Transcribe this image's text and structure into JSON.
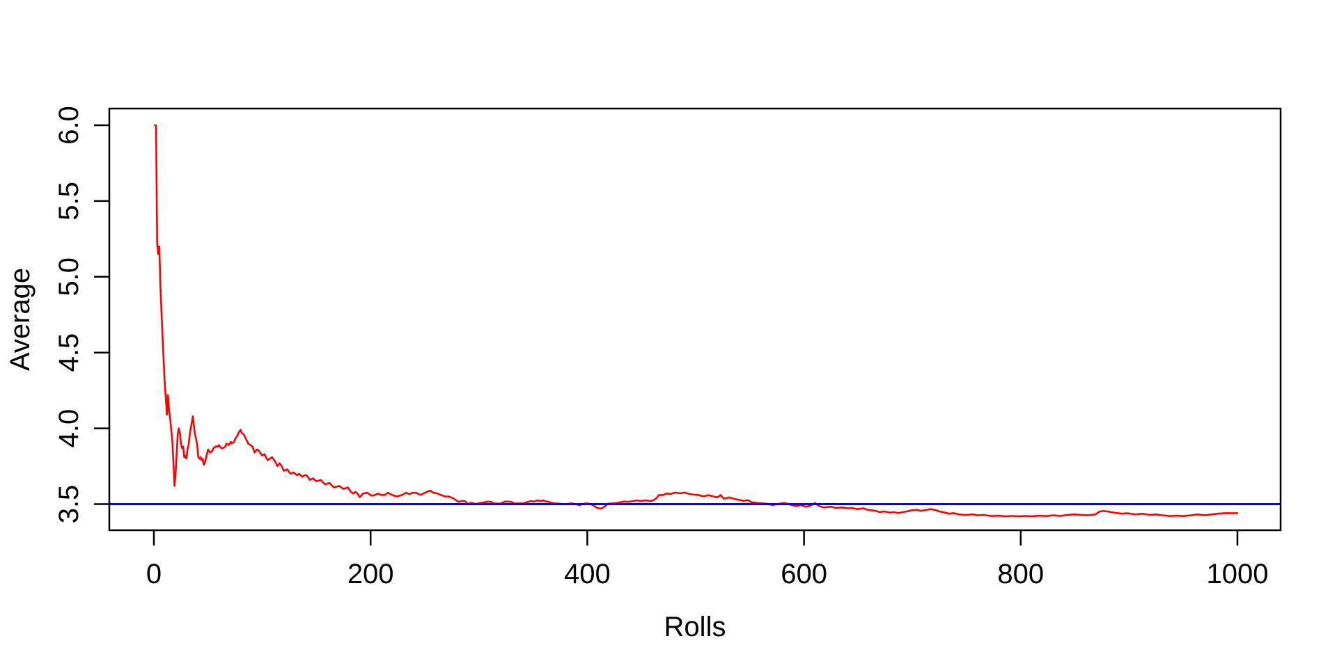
{
  "figure": {
    "background_color": "#ffffff",
    "axis_color": "#000000",
    "accent_red": "#ff0000",
    "accent_blue": "#0000ff"
  },
  "chart_data": {
    "type": "line",
    "title": "",
    "xlabel": "Rolls",
    "ylabel": "Average",
    "grid": false,
    "legend": "none",
    "xlim": [
      -39,
      1040
    ],
    "ylim": [
      3.33,
      6.1
    ],
    "x_ticks": [
      0,
      200,
      400,
      600,
      800,
      1000
    ],
    "x_tick_labels": [
      "0",
      "200",
      "400",
      "600",
      "800",
      "1000"
    ],
    "y_ticks": [
      3.5,
      4.0,
      4.5,
      5.0,
      5.5,
      6.0
    ],
    "y_tick_labels": [
      "3.5",
      "4.0",
      "4.5",
      "5.0",
      "5.5",
      "6.0"
    ],
    "series": [
      {
        "name": "running_average",
        "type": "line",
        "color": "#ff0000",
        "points": [
          [
            1,
            6.0
          ],
          [
            2,
            6.0
          ],
          [
            3,
            5.22
          ],
          [
            4,
            5.15
          ],
          [
            5,
            5.2
          ],
          [
            6,
            4.95
          ],
          [
            7,
            4.77
          ],
          [
            8,
            4.61
          ],
          [
            9,
            4.45
          ],
          [
            10,
            4.3
          ],
          [
            11,
            4.2
          ],
          [
            12,
            4.09
          ],
          [
            13,
            4.22
          ],
          [
            14,
            4.12
          ],
          [
            15,
            4.07
          ],
          [
            16,
            3.99
          ],
          [
            17,
            3.92
          ],
          [
            18,
            3.78
          ],
          [
            19,
            3.62
          ],
          [
            20,
            3.7
          ],
          [
            21,
            3.83
          ],
          [
            22,
            3.96
          ],
          [
            23,
            4.0
          ],
          [
            24,
            3.97
          ],
          [
            25,
            3.9
          ],
          [
            26,
            3.87
          ],
          [
            27,
            3.88
          ],
          [
            28,
            3.81
          ],
          [
            29,
            3.82
          ],
          [
            30,
            3.8
          ],
          [
            31,
            3.86
          ],
          [
            32,
            3.89
          ],
          [
            33,
            3.95
          ],
          [
            34,
            4.0
          ],
          [
            35,
            4.04
          ],
          [
            36,
            4.08
          ],
          [
            37,
            4.01
          ],
          [
            38,
            3.96
          ],
          [
            39,
            3.93
          ],
          [
            40,
            3.89
          ],
          [
            41,
            3.81
          ],
          [
            42,
            3.8
          ],
          [
            43,
            3.81
          ],
          [
            44,
            3.79
          ],
          [
            45,
            3.8
          ],
          [
            46,
            3.76
          ],
          [
            47,
            3.77
          ],
          [
            48,
            3.8
          ],
          [
            49,
            3.83
          ],
          [
            50,
            3.86
          ],
          [
            52,
            3.84
          ],
          [
            54,
            3.85
          ],
          [
            55,
            3.87
          ],
          [
            57,
            3.88
          ],
          [
            59,
            3.88
          ],
          [
            60,
            3.89
          ],
          [
            62,
            3.87
          ],
          [
            64,
            3.87
          ],
          [
            66,
            3.88
          ],
          [
            67,
            3.9
          ],
          [
            69,
            3.89
          ],
          [
            71,
            3.91
          ],
          [
            72,
            3.9
          ],
          [
            74,
            3.91
          ],
          [
            75,
            3.93
          ],
          [
            77,
            3.95
          ],
          [
            78,
            3.97
          ],
          [
            80,
            3.99
          ],
          [
            81,
            3.97
          ],
          [
            83,
            3.96
          ],
          [
            85,
            3.93
          ],
          [
            87,
            3.9
          ],
          [
            89,
            3.89
          ],
          [
            91,
            3.88
          ],
          [
            93,
            3.84
          ],
          [
            95,
            3.86
          ],
          [
            96,
            3.86
          ],
          [
            98,
            3.84
          ],
          [
            100,
            3.82
          ],
          [
            102,
            3.83
          ],
          [
            105,
            3.79
          ],
          [
            107,
            3.8
          ],
          [
            109,
            3.81
          ],
          [
            112,
            3.78
          ],
          [
            114,
            3.75
          ],
          [
            116,
            3.77
          ],
          [
            118,
            3.75
          ],
          [
            120,
            3.72
          ],
          [
            123,
            3.73
          ],
          [
            126,
            3.7
          ],
          [
            129,
            3.71
          ],
          [
            132,
            3.69
          ],
          [
            134,
            3.7
          ],
          [
            137,
            3.68
          ],
          [
            139,
            3.69
          ],
          [
            141,
            3.69
          ],
          [
            144,
            3.66
          ],
          [
            147,
            3.67
          ],
          [
            150,
            3.65
          ],
          [
            154,
            3.66
          ],
          [
            158,
            3.63
          ],
          [
            162,
            3.64
          ],
          [
            166,
            3.61
          ],
          [
            171,
            3.62
          ],
          [
            175,
            3.6
          ],
          [
            179,
            3.61
          ],
          [
            182,
            3.58
          ],
          [
            184,
            3.57
          ],
          [
            186,
            3.58
          ],
          [
            188,
            3.57
          ],
          [
            190,
            3.545
          ],
          [
            193,
            3.57
          ],
          [
            197,
            3.575
          ],
          [
            201,
            3.555
          ],
          [
            204,
            3.56
          ],
          [
            207,
            3.57
          ],
          [
            210,
            3.56
          ],
          [
            213,
            3.56
          ],
          [
            216,
            3.575
          ],
          [
            220,
            3.56
          ],
          [
            224,
            3.55
          ],
          [
            229,
            3.56
          ],
          [
            233,
            3.575
          ],
          [
            236,
            3.565
          ],
          [
            239,
            3.575
          ],
          [
            242,
            3.575
          ],
          [
            246,
            3.56
          ],
          [
            250,
            3.575
          ],
          [
            255,
            3.59
          ],
          [
            258,
            3.575
          ],
          [
            262,
            3.57
          ],
          [
            265,
            3.56
          ],
          [
            269,
            3.55
          ],
          [
            272,
            3.55
          ],
          [
            276,
            3.54
          ],
          [
            281,
            3.515
          ],
          [
            284,
            3.52
          ],
          [
            287,
            3.52
          ],
          [
            290,
            3.5
          ],
          [
            293,
            3.51
          ],
          [
            297,
            3.5
          ],
          [
            301,
            3.508
          ],
          [
            304,
            3.51
          ],
          [
            308,
            3.517
          ],
          [
            311,
            3.515
          ],
          [
            314,
            3.505
          ],
          [
            317,
            3.503
          ],
          [
            319,
            3.503
          ],
          [
            322,
            3.51
          ],
          [
            324,
            3.517
          ],
          [
            327,
            3.517
          ],
          [
            330,
            3.515
          ],
          [
            333,
            3.503
          ],
          [
            335,
            3.505
          ],
          [
            338,
            3.505
          ],
          [
            341,
            3.505
          ],
          [
            345,
            3.515
          ],
          [
            348,
            3.52
          ],
          [
            351,
            3.517
          ],
          [
            354,
            3.525
          ],
          [
            357,
            3.52
          ],
          [
            359,
            3.525
          ],
          [
            362,
            3.517
          ],
          [
            364,
            3.517
          ],
          [
            366,
            3.51
          ],
          [
            370,
            3.505
          ],
          [
            374,
            3.503
          ],
          [
            377,
            3.5
          ],
          [
            380,
            3.5
          ],
          [
            385,
            3.505
          ],
          [
            389,
            3.5
          ],
          [
            393,
            3.493
          ],
          [
            397,
            3.503
          ],
          [
            400,
            3.505
          ],
          [
            403,
            3.5
          ],
          [
            406,
            3.49
          ],
          [
            409,
            3.475
          ],
          [
            413,
            3.47
          ],
          [
            416,
            3.484
          ],
          [
            419,
            3.503
          ],
          [
            424,
            3.505
          ],
          [
            429,
            3.51
          ],
          [
            434,
            3.517
          ],
          [
            438,
            3.515
          ],
          [
            442,
            3.52
          ],
          [
            446,
            3.525
          ],
          [
            449,
            3.52
          ],
          [
            454,
            3.525
          ],
          [
            458,
            3.52
          ],
          [
            461,
            3.525
          ],
          [
            464,
            3.54
          ],
          [
            466,
            3.56
          ],
          [
            470,
            3.56
          ],
          [
            473,
            3.57
          ],
          [
            477,
            3.567
          ],
          [
            481,
            3.576
          ],
          [
            486,
            3.571
          ],
          [
            490,
            3.576
          ],
          [
            494,
            3.567
          ],
          [
            499,
            3.562
          ],
          [
            503,
            3.559
          ],
          [
            507,
            3.551
          ],
          [
            512,
            3.559
          ],
          [
            516,
            3.551
          ],
          [
            520,
            3.544
          ],
          [
            523,
            3.56
          ],
          [
            526,
            3.536
          ],
          [
            531,
            3.544
          ],
          [
            535,
            3.536
          ],
          [
            539,
            3.53
          ],
          [
            544,
            3.521
          ],
          [
            548,
            3.526
          ],
          [
            552,
            3.512
          ],
          [
            559,
            3.507
          ],
          [
            565,
            3.503
          ],
          [
            571,
            3.494
          ],
          [
            578,
            3.503
          ],
          [
            582,
            3.508
          ],
          [
            586,
            3.5
          ],
          [
            589,
            3.493
          ],
          [
            593,
            3.487
          ],
          [
            597,
            3.493
          ],
          [
            602,
            3.483
          ],
          [
            606,
            3.49
          ],
          [
            610,
            3.508
          ],
          [
            614,
            3.487
          ],
          [
            618,
            3.478
          ],
          [
            625,
            3.483
          ],
          [
            629,
            3.475
          ],
          [
            636,
            3.478
          ],
          [
            640,
            3.472
          ],
          [
            644,
            3.475
          ],
          [
            649,
            3.467
          ],
          [
            655,
            3.472
          ],
          [
            659,
            3.462
          ],
          [
            666,
            3.456
          ],
          [
            670,
            3.447
          ],
          [
            674,
            3.452
          ],
          [
            679,
            3.444
          ],
          [
            683,
            3.447
          ],
          [
            687,
            3.441
          ],
          [
            691,
            3.447
          ],
          [
            695,
            3.452
          ],
          [
            700,
            3.46
          ],
          [
            704,
            3.462
          ],
          [
            708,
            3.456
          ],
          [
            713,
            3.462
          ],
          [
            717,
            3.467
          ],
          [
            721,
            3.462
          ],
          [
            725,
            3.452
          ],
          [
            730,
            3.444
          ],
          [
            734,
            3.437
          ],
          [
            738,
            3.441
          ],
          [
            743,
            3.432
          ],
          [
            749,
            3.429
          ],
          [
            756,
            3.432
          ],
          [
            760,
            3.426
          ],
          [
            766,
            3.429
          ],
          [
            773,
            3.421
          ],
          [
            779,
            3.424
          ],
          [
            786,
            3.419
          ],
          [
            792,
            3.422
          ],
          [
            798,
            3.419
          ],
          [
            805,
            3.422
          ],
          [
            811,
            3.419
          ],
          [
            817,
            3.424
          ],
          [
            824,
            3.421
          ],
          [
            830,
            3.426
          ],
          [
            837,
            3.422
          ],
          [
            843,
            3.429
          ],
          [
            849,
            3.432
          ],
          [
            856,
            3.429
          ],
          [
            862,
            3.426
          ],
          [
            869,
            3.432
          ],
          [
            873,
            3.452
          ],
          [
            876,
            3.455
          ],
          [
            880,
            3.452
          ],
          [
            886,
            3.444
          ],
          [
            893,
            3.437
          ],
          [
            899,
            3.44
          ],
          [
            906,
            3.432
          ],
          [
            912,
            3.437
          ],
          [
            919,
            3.429
          ],
          [
            925,
            3.432
          ],
          [
            931,
            3.426
          ],
          [
            938,
            3.421
          ],
          [
            944,
            3.424
          ],
          [
            950,
            3.421
          ],
          [
            957,
            3.426
          ],
          [
            963,
            3.432
          ],
          [
            970,
            3.426
          ],
          [
            976,
            3.432
          ],
          [
            982,
            3.437
          ],
          [
            989,
            3.441
          ],
          [
            995,
            3.44
          ],
          [
            1000,
            3.441
          ]
        ]
      },
      {
        "name": "reference_line",
        "type": "hline",
        "y": 3.5,
        "color": "#0000ff"
      }
    ]
  }
}
